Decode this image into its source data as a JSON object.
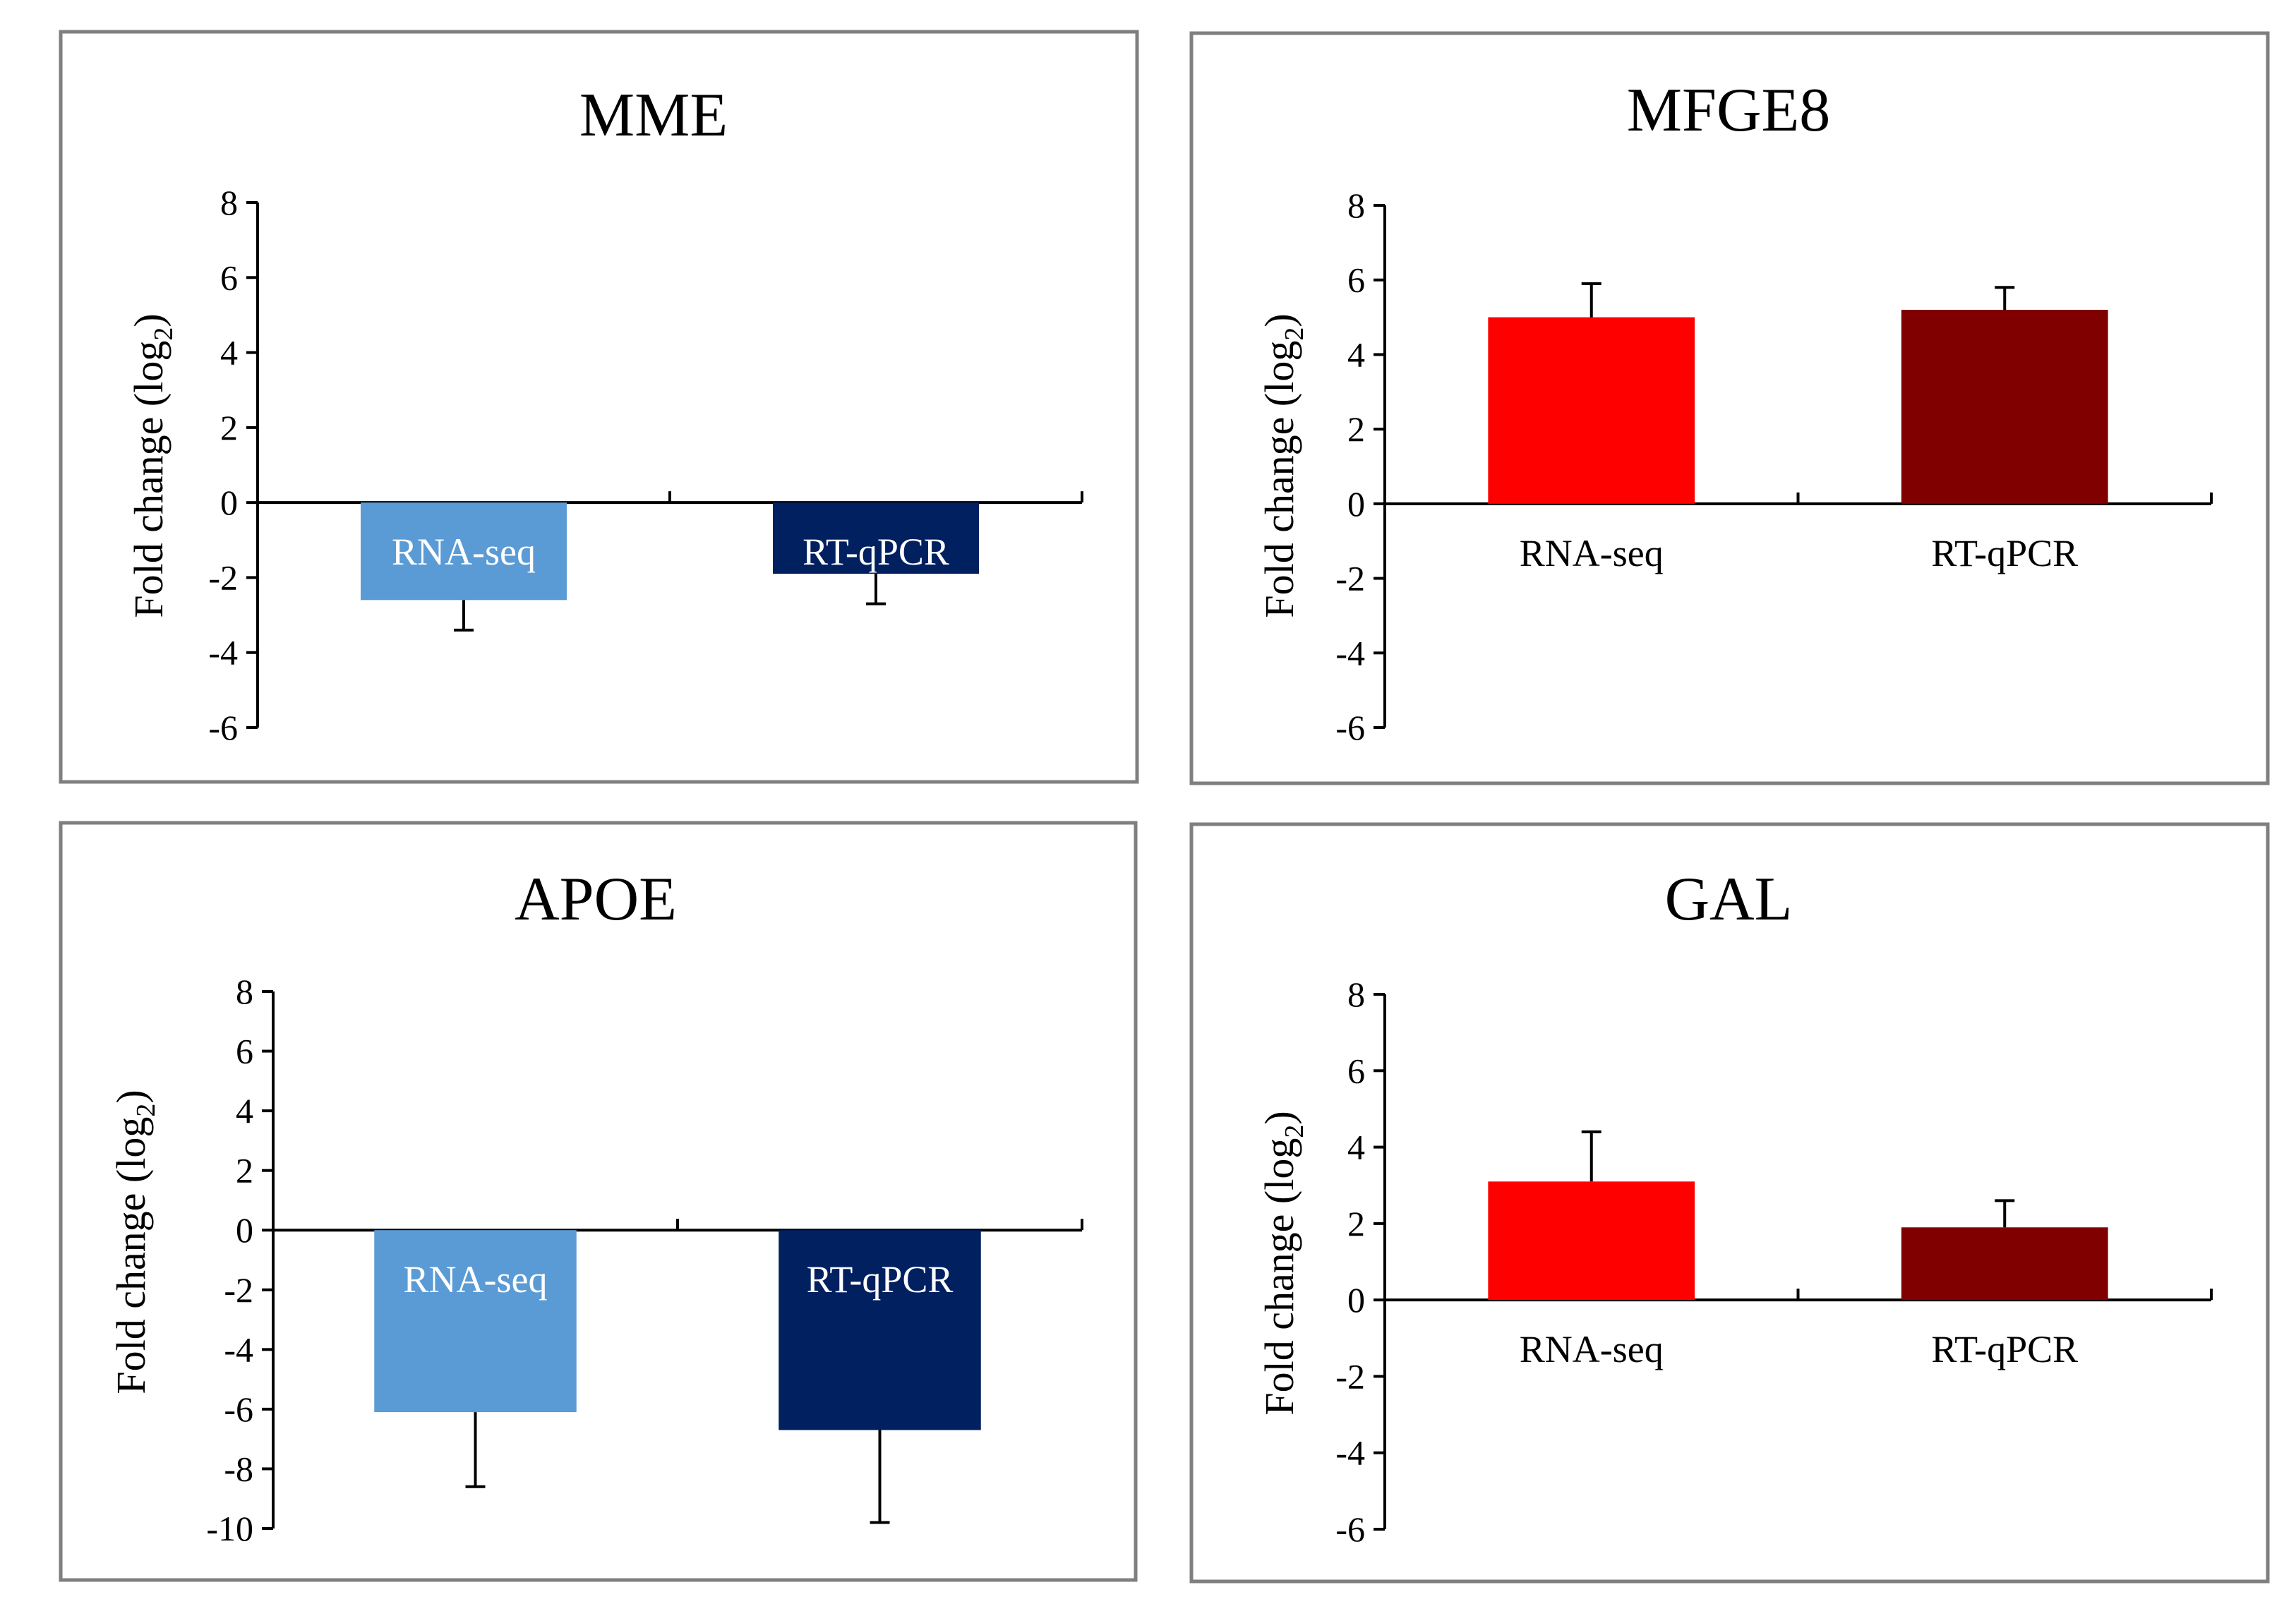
{
  "chart_data": [
    {
      "type": "bar",
      "title": "MME",
      "ylabel": "Fold change",
      "ylabel_paren": "(log",
      "ylabel_sub": "2",
      "ylabel_close": ")",
      "ylim": [
        -6,
        8
      ],
      "yticks": [
        8,
        6,
        4,
        2,
        0,
        -2,
        -4,
        -6
      ],
      "categories": [
        "RNA-seq",
        "RT-qPCR"
      ],
      "values": [
        -2.6,
        -1.9
      ],
      "errors": [
        0.8,
        0.8
      ],
      "colors": [
        "#5b9bd5",
        "#002060"
      ],
      "label_colors": [
        "#ffffff",
        "#ffffff"
      ]
    },
    {
      "type": "bar",
      "title": "MFGE8",
      "ylabel": "Fold change",
      "ylabel_paren": "(log",
      "ylabel_sub": "2",
      "ylabel_close": ")",
      "ylim": [
        -6,
        8
      ],
      "yticks": [
        8,
        6,
        4,
        2,
        0,
        -2,
        -4,
        -6
      ],
      "categories": [
        "RNA-seq",
        "RT-qPCR"
      ],
      "values": [
        5.0,
        5.2
      ],
      "errors": [
        0.9,
        0.6
      ],
      "colors": [
        "#ff0000",
        "#800000"
      ],
      "label_colors": [
        "#000000",
        "#000000"
      ]
    },
    {
      "type": "bar",
      "title": "APOE",
      "ylabel": "Fold change",
      "ylabel_paren": "(log",
      "ylabel_sub": "2",
      "ylabel_close": ")",
      "ylim": [
        -10,
        8
      ],
      "yticks": [
        8,
        6,
        4,
        2,
        0,
        -2,
        -4,
        -6,
        -8,
        -10
      ],
      "categories": [
        "RNA-seq",
        "RT-qPCR"
      ],
      "values": [
        -6.1,
        -6.7
      ],
      "errors": [
        2.5,
        3.1
      ],
      "colors": [
        "#5b9bd5",
        "#002060"
      ],
      "label_colors": [
        "#ffffff",
        "#ffffff"
      ]
    },
    {
      "type": "bar",
      "title": "GAL",
      "ylabel": "Fold change",
      "ylabel_paren": "(log",
      "ylabel_sub": "2",
      "ylabel_close": ")",
      "ylim": [
        -6,
        8
      ],
      "yticks": [
        8,
        6,
        4,
        2,
        0,
        -2,
        -4,
        -6
      ],
      "categories": [
        "RNA-seq",
        "RT-qPCR"
      ],
      "values": [
        3.1,
        1.9
      ],
      "errors": [
        1.3,
        0.7
      ],
      "colors": [
        "#ff0000",
        "#800000"
      ],
      "label_colors": [
        "#000000",
        "#000000"
      ]
    }
  ]
}
